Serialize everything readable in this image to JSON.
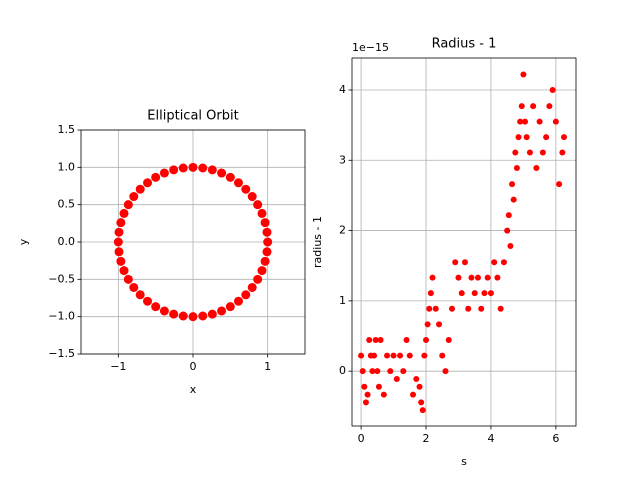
{
  "chart_data": [
    {
      "type": "scatter",
      "title": "Elliptical Orbit",
      "x_label": "x",
      "y_label": "y",
      "color": "#ff0000",
      "grid": true,
      "xlim": [
        -1.5,
        1.5
      ],
      "ylim": [
        -1.5,
        1.5
      ],
      "xticks": [
        {
          "value": -1,
          "label": "−1"
        },
        0,
        1
      ],
      "yticks": [
        {
          "value": -1.5,
          "label": "−1.5"
        },
        {
          "value": -1,
          "label": "−1.0"
        },
        {
          "value": -0.5,
          "label": "−0.5"
        },
        {
          "value": 0,
          "label": "0.0"
        },
        {
          "value": 0.5,
          "label": "0.5"
        },
        {
          "value": 1,
          "label": "1.0"
        },
        {
          "value": 1.5,
          "label": "1.5"
        }
      ],
      "x": [
        1,
        0.991,
        0.966,
        0.924,
        0.866,
        0.793,
        0.707,
        0.609,
        0.5,
        0.383,
        0.259,
        0.131,
        0,
        -0.131,
        -0.259,
        -0.383,
        -0.5,
        -0.609,
        -0.707,
        -0.793,
        -0.866,
        -0.924,
        -0.966,
        -0.991,
        -1,
        -0.991,
        -0.966,
        -0.924,
        -0.866,
        -0.793,
        -0.707,
        -0.609,
        -0.5,
        -0.383,
        -0.259,
        -0.131,
        0,
        0.131,
        0.259,
        0.383,
        0.5,
        0.609,
        0.707,
        0.793,
        0.866,
        0.924,
        0.966,
        0.991
      ],
      "values": [
        0,
        0.131,
        0.259,
        0.383,
        0.5,
        0.609,
        0.707,
        0.793,
        0.866,
        0.924,
        0.966,
        0.991,
        1,
        0.991,
        0.966,
        0.924,
        0.866,
        0.793,
        0.707,
        0.609,
        0.5,
        0.383,
        0.259,
        0.131,
        0,
        -0.131,
        -0.259,
        -0.383,
        -0.5,
        -0.609,
        -0.707,
        -0.793,
        -0.866,
        -0.924,
        -0.966,
        -0.991,
        -1,
        -0.991,
        -0.966,
        -0.924,
        -0.866,
        -0.793,
        -0.707,
        -0.609,
        -0.5,
        -0.383,
        -0.259,
        -0.131
      ]
    },
    {
      "type": "scatter",
      "title": "Radius - 1",
      "x_label": "s",
      "y_label": "radius - 1",
      "offset_text": "1e−15",
      "color": "#ff0000",
      "grid": true,
      "xlim": [
        -0.28,
        6.62
      ],
      "ylim": [
        -0.78,
        4.455
      ],
      "xticks": [
        0,
        2,
        4,
        6
      ],
      "yticks": [
        0,
        1,
        2,
        3,
        4
      ],
      "x": [
        0,
        0.05,
        0.1,
        0.15,
        0.2,
        0.25,
        0.3,
        0.35,
        0.4,
        0.45,
        0.5,
        0.55,
        0.6,
        0.7,
        0.8,
        0.9,
        1,
        1.1,
        1.2,
        1.3,
        1.4,
        1.5,
        1.6,
        1.7,
        1.8,
        1.85,
        1.9,
        1.95,
        2,
        2.05,
        2.1,
        2.15,
        2.2,
        2.3,
        2.4,
        2.5,
        2.6,
        2.7,
        2.8,
        2.9,
        3,
        3.1,
        3.2,
        3.3,
        3.4,
        3.5,
        3.6,
        3.7,
        3.8,
        3.9,
        4,
        4.1,
        4.2,
        4.3,
        4.4,
        4.5,
        4.55,
        4.6,
        4.65,
        4.7,
        4.75,
        4.8,
        4.85,
        4.9,
        4.95,
        5,
        5.05,
        5.1,
        5.2,
        5.3,
        5.4,
        5.5,
        5.6,
        5.7,
        5.8,
        5.9,
        6,
        6.1,
        6.2,
        6.25
      ],
      "values": [
        0.222,
        0,
        -0.222,
        -0.444,
        -0.333,
        0.444,
        0.222,
        0,
        0.222,
        0.444,
        0,
        -0.222,
        0.444,
        -0.333,
        0.222,
        0,
        0.222,
        -0.111,
        0.222,
        0,
        0.444,
        0.222,
        -0.333,
        -0.111,
        -0.222,
        -0.444,
        -0.555,
        0.222,
        0.444,
        0.666,
        0.888,
        1.11,
        1.33,
        0.888,
        0.666,
        0.222,
        0,
        0.444,
        0.888,
        1.55,
        1.33,
        1.11,
        1.55,
        0.888,
        1.33,
        1.11,
        1.33,
        0.888,
        1.11,
        1.33,
        1.11,
        1.55,
        1.33,
        0.888,
        1.55,
        2,
        2.22,
        1.78,
        2.66,
        2.44,
        3.11,
        2.89,
        3.33,
        3.55,
        3.77,
        4.22,
        3.55,
        3.33,
        3.11,
        3.77,
        2.89,
        3.55,
        3.11,
        3.33,
        3.77,
        4,
        3.55,
        2.66,
        3.11,
        3.33
      ]
    }
  ]
}
